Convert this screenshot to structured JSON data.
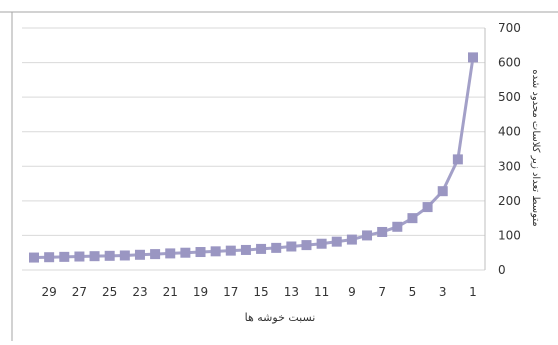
{
  "chart_data": {
    "type": "line",
    "xlabel": "نسبت خوشه ها",
    "ylabel": "متوسط تعداد زیر کلاسات محدود شده",
    "x_axis_direction": "right-to-left",
    "x": [
      1,
      2,
      3,
      4,
      5,
      6,
      7,
      8,
      9,
      10,
      11,
      12,
      13,
      14,
      15,
      16,
      17,
      18,
      19,
      20,
      21,
      22,
      23,
      24,
      25,
      26,
      27,
      28,
      29,
      30
    ],
    "x_tick_labels": [
      "1",
      "3",
      "5",
      "7",
      "9",
      "11",
      "13",
      "15",
      "17",
      "19",
      "21",
      "23",
      "25",
      "27",
      "29"
    ],
    "y_ticks": [
      0,
      100,
      200,
      300,
      400,
      500,
      600,
      700
    ],
    "ylim": [
      0,
      700
    ],
    "grid": "horizontal",
    "marker": "square",
    "series": [
      {
        "values": [
          615,
          320,
          228,
          182,
          150,
          125,
          110,
          100,
          88,
          82,
          76,
          72,
          68,
          64,
          61,
          58,
          56,
          54,
          52,
          50,
          48,
          46,
          44,
          42,
          41,
          40,
          39,
          38,
          37,
          36
        ]
      }
    ],
    "colors": {
      "line": "#a3a0c8",
      "marker": "#9a96c2",
      "grid": "#d9d9d9",
      "text": "#333333"
    }
  }
}
